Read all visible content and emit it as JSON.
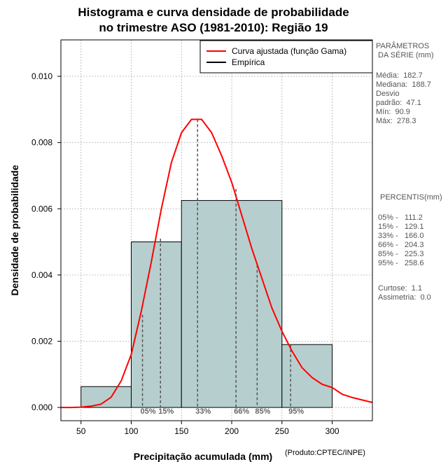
{
  "chart_data": {
    "type": "bar",
    "title": "Histograma e curva densidade de probabilidade",
    "subtitle": "no trimestre ASO (1981-2010): Região 19",
    "xlabel": "Precipitação acumulada (mm)",
    "ylabel": "Densidade de probabilidade",
    "xlim": [
      30,
      340
    ],
    "ylim": [
      -0.0004,
      0.0111
    ],
    "xticks": [
      "50",
      "100",
      "150",
      "200",
      "250",
      "300"
    ],
    "xtick_values": [
      50,
      100,
      150,
      200,
      250,
      300
    ],
    "yticks": [
      "0.000",
      "0.002",
      "0.004",
      "0.006",
      "0.008",
      "0.010"
    ],
    "ytick_values": [
      0.0,
      0.002,
      0.004,
      0.006,
      0.008,
      0.01
    ],
    "grid": true,
    "bins": [
      {
        "x0": 50,
        "x1": 100,
        "density": 0.00063
      },
      {
        "x0": 100,
        "x1": 150,
        "density": 0.005
      },
      {
        "x0": 150,
        "x1": 250,
        "density": 0.00625
      },
      {
        "x0": 250,
        "x1": 300,
        "density": 0.0019
      }
    ],
    "gamma_curve": {
      "name": "Curva ajustada (função Gama)",
      "color": "#ff0000",
      "x": [
        30,
        40,
        50,
        60,
        70,
        80,
        90,
        100,
        110,
        120,
        130,
        140,
        150,
        160,
        170,
        180,
        190,
        200,
        210,
        220,
        230,
        240,
        250,
        260,
        270,
        280,
        290,
        300,
        310,
        320,
        340
      ],
      "y": [
        0.0,
        0.0,
        1e-05,
        4e-05,
        0.0001,
        0.00031,
        0.0008,
        0.0016,
        0.0029,
        0.0044,
        0.006,
        0.0074,
        0.0083,
        0.0087,
        0.0087,
        0.0083,
        0.0076,
        0.0068,
        0.0058,
        0.0048,
        0.0039,
        0.003,
        0.0023,
        0.0017,
        0.0012,
        0.0009,
        0.0007,
        0.0006,
        0.0004,
        0.0003,
        0.00015
      ]
    },
    "empirical_name": "Empírica",
    "percentile_lines": [
      {
        "label": "05%",
        "x": 111.2,
        "y": 0.0028
      },
      {
        "label": "15%",
        "x": 129.1,
        "y": 0.0051
      },
      {
        "label": "33%",
        "x": 166.0,
        "y": 0.0087
      },
      {
        "label": "66%",
        "x": 204.3,
        "y": 0.0066
      },
      {
        "label": "85%",
        "x": 225.3,
        "y": 0.0043
      },
      {
        "label": "95%",
        "x": 258.6,
        "y": 0.0019
      }
    ],
    "legend_position": "top-right"
  },
  "params": {
    "header": "PARÂMETROS\n DA SÉRIE (mm)",
    "stats": "Média:  182.7\nMediana:  188.7\nDesvio\npadrão:  47.1\nMín:  90.9\nMáx:  278.3"
  },
  "percentis": {
    "header": "PERCENTIS(mm)",
    "values": "05% -   111.2\n15% -   129.1\n33% -   166.0\n66% -   204.3\n85% -   225.3\n95% -   258.6",
    "extra": "Curtose:  1.1\nAssimetria:  0.0"
  },
  "credit": "(Produto:CPTEC/INPE)",
  "colors": {
    "bar_fill": "#b6cfce",
    "curve": "#ff0000",
    "grid": "#b0b0b0",
    "percentile_line": "#555555"
  }
}
